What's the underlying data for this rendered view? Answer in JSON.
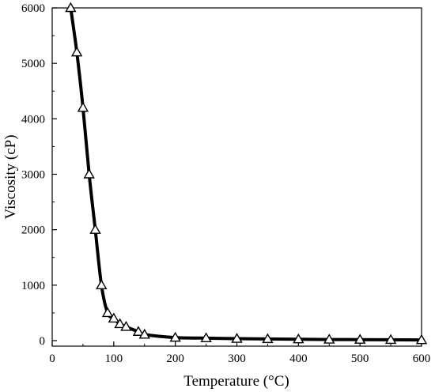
{
  "chart_data": {
    "type": "line",
    "xlabel": "Temperature (°C)",
    "ylabel": "Viscosity (cP)",
    "xlim": [
      0,
      600
    ],
    "ylim": [
      -100,
      6000
    ],
    "xticks": [
      "0",
      "100",
      "200",
      "300",
      "400",
      "500",
      "600"
    ],
    "yticks": [
      "0",
      "1000",
      "2000",
      "3000",
      "4000",
      "5000",
      "6000"
    ],
    "grid": false,
    "marker": "open-triangle",
    "line_color": "#000000",
    "series": [
      {
        "x": [
          30,
          40,
          50,
          60,
          70,
          80,
          90,
          100,
          110,
          120,
          140,
          150,
          200,
          250,
          300,
          350,
          400,
          450,
          500,
          550,
          600
        ],
        "y": [
          6000,
          5200,
          4200,
          3000,
          2000,
          1000,
          500,
          400,
          300,
          250,
          160,
          110,
          55,
          45,
          35,
          30,
          25,
          20,
          18,
          15,
          12
        ]
      }
    ]
  }
}
